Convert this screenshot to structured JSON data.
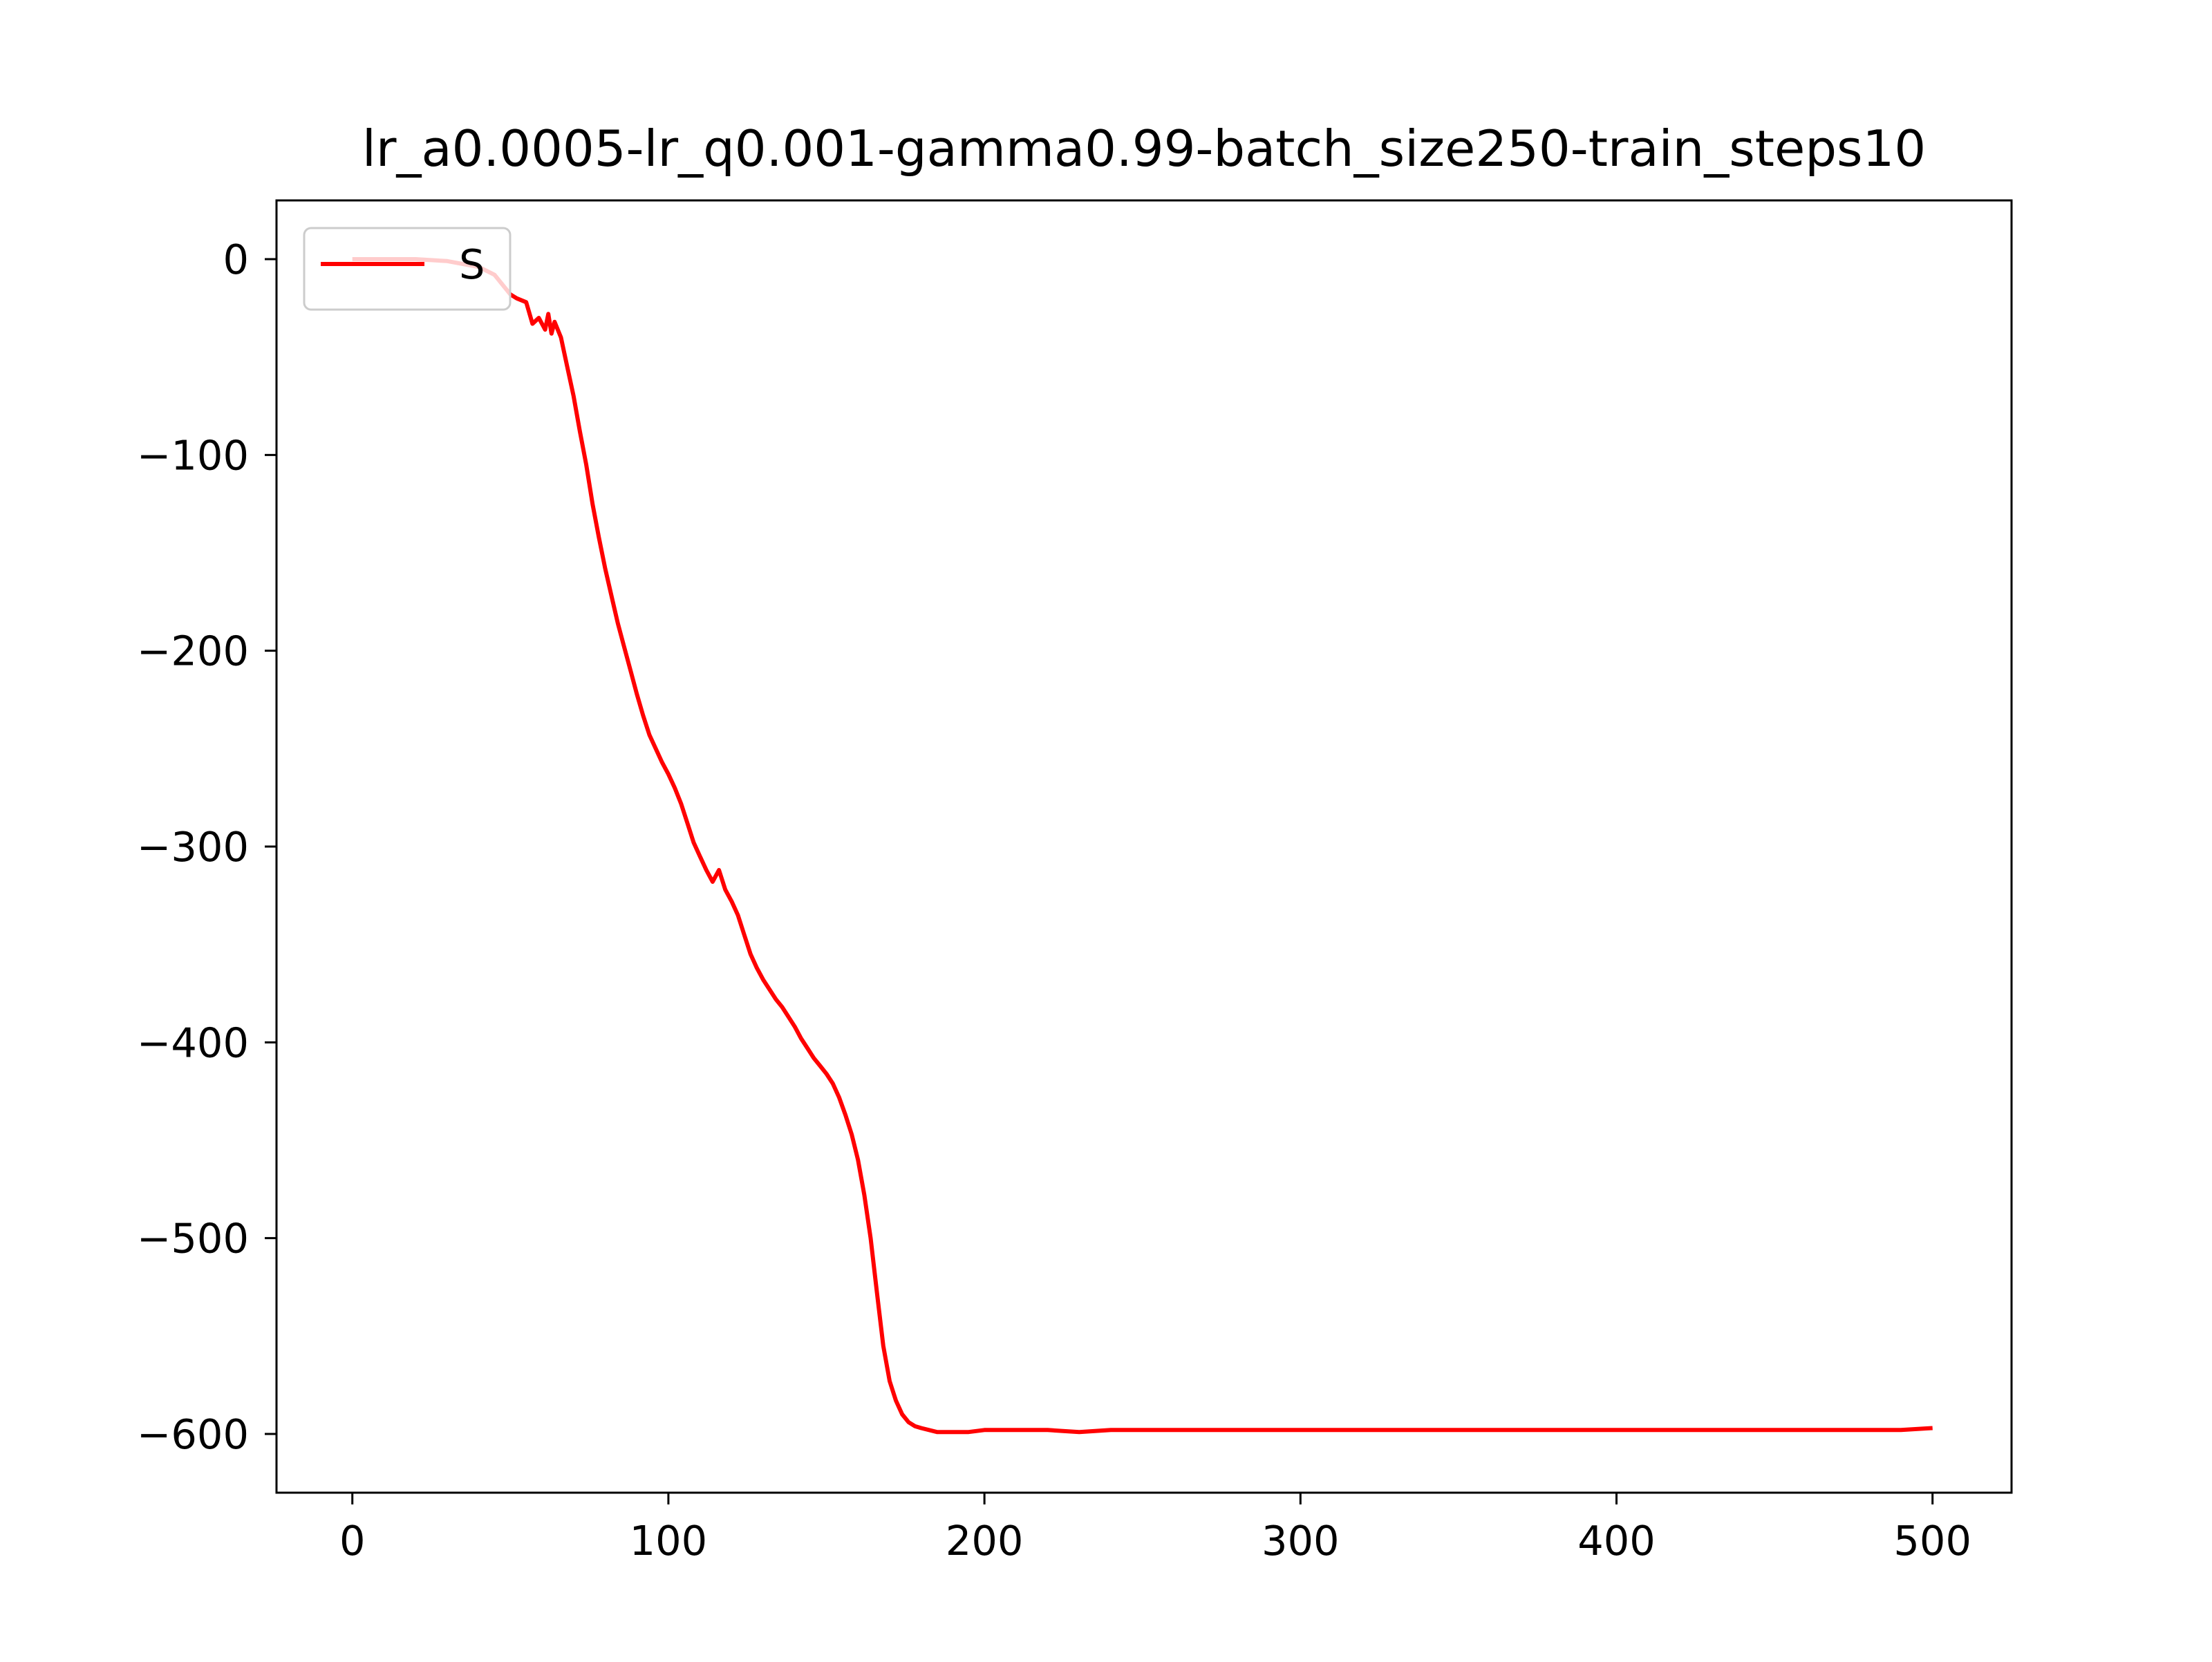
{
  "chart_data": {
    "type": "line",
    "title": "lr_a0.0005-lr_q0.001-gamma0.99-batch_size250-train_steps10",
    "xlabel": "",
    "ylabel": "",
    "xlim": [
      -24,
      525
    ],
    "ylim": [
      -630,
      30
    ],
    "x_ticks": [
      0,
      100,
      200,
      300,
      400,
      500
    ],
    "y_ticks": [
      0,
      -100,
      -200,
      -300,
      -400,
      -500,
      -600
    ],
    "x_tick_labels": [
      "0",
      "100",
      "200",
      "300",
      "400",
      "500"
    ],
    "y_tick_labels": [
      "0",
      "−100",
      "−200",
      "−300",
      "−400",
      "−500",
      "−600"
    ],
    "grid": false,
    "legend_position": "upper-left",
    "series": [
      {
        "name": "S",
        "color": "#ff0000",
        "points": [
          [
            0,
            0
          ],
          [
            10,
            0
          ],
          [
            20,
            0
          ],
          [
            30,
            -1
          ],
          [
            40,
            -4
          ],
          [
            45,
            -8
          ],
          [
            50,
            -18
          ],
          [
            52,
            -20
          ],
          [
            55,
            -22
          ],
          [
            57,
            -33
          ],
          [
            59,
            -30
          ],
          [
            61,
            -36
          ],
          [
            62,
            -28
          ],
          [
            63,
            -38
          ],
          [
            64,
            -32
          ],
          [
            66,
            -40
          ],
          [
            68,
            -55
          ],
          [
            70,
            -70
          ],
          [
            72,
            -88
          ],
          [
            74,
            -105
          ],
          [
            76,
            -125
          ],
          [
            78,
            -142
          ],
          [
            80,
            -158
          ],
          [
            82,
            -172
          ],
          [
            84,
            -186
          ],
          [
            86,
            -198
          ],
          [
            88,
            -210
          ],
          [
            90,
            -222
          ],
          [
            92,
            -233
          ],
          [
            94,
            -243
          ],
          [
            96,
            -250
          ],
          [
            98,
            -257
          ],
          [
            100,
            -263
          ],
          [
            102,
            -270
          ],
          [
            104,
            -278
          ],
          [
            106,
            -288
          ],
          [
            108,
            -298
          ],
          [
            110,
            -305
          ],
          [
            112,
            -312
          ],
          [
            114,
            -318
          ],
          [
            116,
            -312
          ],
          [
            118,
            -322
          ],
          [
            120,
            -328
          ],
          [
            122,
            -335
          ],
          [
            124,
            -345
          ],
          [
            126,
            -355
          ],
          [
            128,
            -362
          ],
          [
            130,
            -368
          ],
          [
            132,
            -373
          ],
          [
            134,
            -378
          ],
          [
            136,
            -382
          ],
          [
            138,
            -387
          ],
          [
            140,
            -392
          ],
          [
            142,
            -398
          ],
          [
            144,
            -403
          ],
          [
            146,
            -408
          ],
          [
            148,
            -412
          ],
          [
            150,
            -416
          ],
          [
            152,
            -421
          ],
          [
            154,
            -428
          ],
          [
            156,
            -437
          ],
          [
            158,
            -447
          ],
          [
            160,
            -460
          ],
          [
            162,
            -478
          ],
          [
            164,
            -500
          ],
          [
            166,
            -528
          ],
          [
            168,
            -555
          ],
          [
            170,
            -573
          ],
          [
            172,
            -583
          ],
          [
            174,
            -590
          ],
          [
            176,
            -594
          ],
          [
            178,
            -596
          ],
          [
            180,
            -597
          ],
          [
            185,
            -599
          ],
          [
            190,
            -599
          ],
          [
            195,
            -599
          ],
          [
            200,
            -598
          ],
          [
            210,
            -598
          ],
          [
            220,
            -598
          ],
          [
            230,
            -599
          ],
          [
            240,
            -598
          ],
          [
            250,
            -598
          ],
          [
            260,
            -598
          ],
          [
            270,
            -598
          ],
          [
            280,
            -598
          ],
          [
            290,
            -598
          ],
          [
            300,
            -598
          ],
          [
            310,
            -598
          ],
          [
            320,
            -598
          ],
          [
            330,
            -598
          ],
          [
            340,
            -598
          ],
          [
            350,
            -598
          ],
          [
            360,
            -598
          ],
          [
            370,
            -598
          ],
          [
            380,
            -598
          ],
          [
            390,
            -598
          ],
          [
            400,
            -598
          ],
          [
            410,
            -598
          ],
          [
            420,
            -598
          ],
          [
            430,
            -598
          ],
          [
            440,
            -598
          ],
          [
            450,
            -598
          ],
          [
            460,
            -598
          ],
          [
            470,
            -598
          ],
          [
            480,
            -598
          ],
          [
            490,
            -598
          ],
          [
            500,
            -597
          ]
        ]
      }
    ]
  }
}
